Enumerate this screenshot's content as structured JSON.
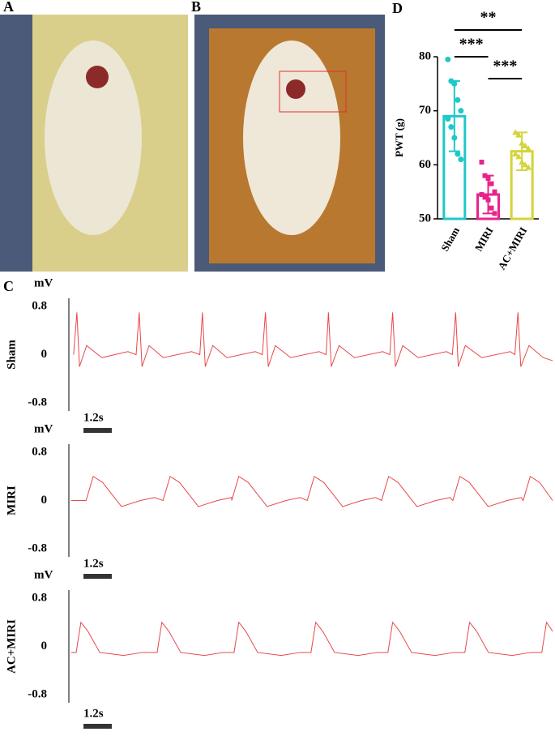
{
  "panel_labels": [
    "A",
    "B",
    "C",
    "D"
  ],
  "chart_data": [
    {
      "type": "bar",
      "y_label": "PWT (g)",
      "categories": [
        "Sham",
        "MIRI",
        "AC+MIRI"
      ],
      "values": [
        69,
        54.5,
        62.5
      ],
      "errors": [
        6.5,
        3.5,
        3.5
      ],
      "colors": [
        "#1ec8c8",
        "#e8248c",
        "#d4d43c"
      ],
      "points": [
        [
          79.5,
          75.5,
          75,
          72,
          70,
          68.5,
          67,
          65,
          62,
          61
        ],
        [
          60.5,
          58,
          57.5,
          56.5,
          55,
          54.5,
          54,
          53.5,
          52,
          51
        ],
        [
          66,
          65.5,
          64,
          63.5,
          63,
          62,
          61.5,
          60.5,
          60,
          59.5
        ]
      ],
      "significance": [
        "**",
        "***",
        "***"
      ],
      "ylim": [
        50,
        80
      ],
      "yticks": [
        50,
        60,
        70,
        80
      ]
    },
    {
      "type": "line",
      "row_label": "Sham",
      "y_label": "mV",
      "color": "#e8474a",
      "x": [
        0.2,
        0.34,
        0.45,
        0.75,
        1.4,
        2.5,
        2.85,
        2.98,
        3.1,
        3.4,
        4.0,
        5.2,
        5.55,
        5.66,
        5.78,
        6.1,
        6.7,
        7.9,
        8.2,
        8.33,
        8.45,
        8.75,
        9.4,
        10.6,
        10.9,
        11.0,
        11.12,
        11.45,
        12.1,
        13.3,
        13.6,
        13.72,
        13.84,
        14.15,
        14.8,
        16.0,
        16.25,
        16.39,
        16.5,
        16.8,
        17.5,
        18.7,
        18.9,
        19.03,
        19.15,
        19.5,
        20.1,
        20.5
      ],
      "values": [
        0,
        0.7,
        -0.2,
        0.15,
        -0.05,
        0.05,
        0,
        0.7,
        -0.2,
        0.15,
        -0.05,
        0.05,
        0,
        0.7,
        -0.2,
        0.15,
        -0.05,
        0.05,
        0,
        0.7,
        -0.2,
        0.15,
        -0.05,
        0.05,
        0,
        0.7,
        -0.2,
        0.15,
        -0.05,
        0.05,
        0,
        0.7,
        -0.2,
        0.15,
        -0.05,
        0.05,
        0,
        0.7,
        -0.2,
        0.15,
        -0.05,
        0.05,
        0,
        0.7,
        -0.2,
        0.15,
        -0.05,
        -0.1
      ],
      "xlim": [
        0,
        20.6
      ],
      "ylim": [
        -0.8,
        0.8
      ],
      "yticks": [
        0.8,
        0,
        -0.8
      ],
      "scale_bar": {
        "value": 1.2,
        "label": "1.2s"
      }
    },
    {
      "type": "line",
      "row_label": "MIRI",
      "y_label": "mV",
      "color": "#e8474a",
      "x": [
        0.1,
        0.73,
        1.03,
        1.43,
        2.23,
        3.03,
        3.63,
        3.99,
        4.29,
        4.69,
        5.49,
        6.29,
        6.9,
        6.9,
        7.2,
        7.6,
        8.4,
        9.2,
        9.8,
        10.1,
        10.4,
        10.8,
        11.6,
        12.4,
        13.0,
        13.25,
        13.55,
        13.95,
        14.75,
        15.55,
        16.15,
        16.27,
        16.57,
        16.97,
        17.77,
        18.57,
        19.17,
        19.25,
        19.55,
        19.95,
        20.5
      ],
      "values": [
        0,
        0,
        0.4,
        0.3,
        -0.1,
        0,
        0.05,
        0,
        0.4,
        0.3,
        -0.1,
        0,
        0.05,
        0,
        0.4,
        0.3,
        -0.1,
        0,
        0.05,
        0,
        0.4,
        0.3,
        -0.1,
        0,
        0.05,
        0,
        0.4,
        0.3,
        -0.1,
        0,
        0.05,
        0,
        0.4,
        0.3,
        -0.1,
        0,
        0.05,
        0,
        0.4,
        0.3,
        0.0
      ],
      "xlim": [
        0,
        20.6
      ],
      "ylim": [
        -0.8,
        0.8
      ],
      "yticks": [
        0.8,
        0,
        -0.8
      ],
      "scale_bar": {
        "value": 1.2,
        "label": "1.2s"
      }
    },
    {
      "type": "line",
      "row_label": "AC+MIRI",
      "y_label": "mV",
      "color": "#e8474a",
      "x": [
        0.1,
        0.31,
        0.51,
        0.81,
        1.31,
        2.31,
        3.11,
        3.74,
        3.94,
        4.24,
        4.74,
        5.74,
        6.54,
        7.0,
        7.2,
        7.5,
        8.0,
        9.0,
        9.8,
        10.26,
        10.46,
        10.76,
        11.26,
        12.26,
        13.06,
        13.52,
        13.72,
        14.02,
        14.52,
        15.52,
        16.32,
        16.78,
        16.98,
        17.28,
        17.78,
        18.78,
        19.58,
        20.04,
        20.24,
        20.5
      ],
      "values": [
        -0.1,
        -0.1,
        0.4,
        0.25,
        -0.1,
        -0.15,
        -0.1,
        -0.1,
        0.4,
        0.25,
        -0.1,
        -0.15,
        -0.1,
        -0.1,
        0.4,
        0.25,
        -0.1,
        -0.15,
        -0.1,
        -0.1,
        0.4,
        0.25,
        -0.1,
        -0.15,
        -0.1,
        -0.1,
        0.4,
        0.25,
        -0.1,
        -0.15,
        -0.1,
        -0.1,
        0.4,
        0.25,
        -0.1,
        -0.15,
        -0.1,
        -0.1,
        0.4,
        0.25
      ],
      "xlim": [
        0,
        20.6
      ],
      "ylim": [
        -0.8,
        0.8
      ],
      "yticks": [
        0.8,
        0,
        -0.8
      ],
      "scale_bar": {
        "value": 1.2,
        "label": "1.2s"
      }
    }
  ]
}
